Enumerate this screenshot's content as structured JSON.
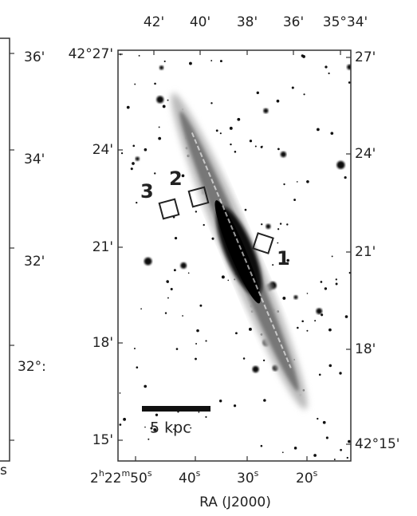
{
  "left_panel": {
    "dec_labels": [
      "36'",
      "34'",
      "32'",
      "32°:"
    ],
    "bottom_label": "s"
  },
  "top_labels": [
    "42'",
    "40'",
    "38'",
    "36'",
    "35°34'"
  ],
  "left_labels": [
    "42°27'",
    "24'",
    "21'",
    "18'",
    "15'"
  ],
  "right_labels": [
    "27'",
    "24'",
    "21'",
    "18'",
    "42°15'"
  ],
  "bottom_labels": [
    {
      "parts": [
        "2",
        "h",
        "22",
        "m",
        "50",
        "s"
      ]
    },
    {
      "parts": [
        "40",
        "s"
      ]
    },
    {
      "parts": [
        "30",
        "s"
      ]
    },
    {
      "parts": [
        "20",
        "s"
      ]
    }
  ],
  "x_axis_title": "RA (J2000)",
  "regions": [
    "1",
    "2",
    "3"
  ],
  "scale_bar": "5 kpc"
}
